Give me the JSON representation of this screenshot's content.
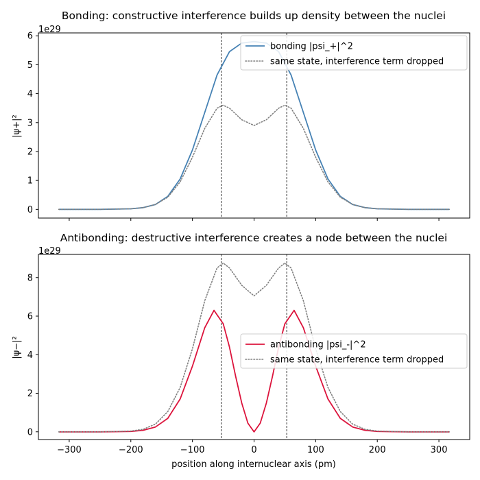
{
  "chart_data": [
    {
      "type": "line",
      "title": "Bonding: constructive interference builds up density between the nuclei",
      "xlabel": "",
      "ylabel": "|ψ+|²",
      "offset_text": "1e29",
      "xlim": [
        -350,
        350
      ],
      "ylim": [
        -0.3,
        6.1
      ],
      "yticks": [
        0,
        1,
        2,
        3,
        4,
        5,
        6
      ],
      "xticks": [
        -300,
        -200,
        -100,
        0,
        100,
        200,
        300
      ],
      "show_xticklabels": false,
      "nuclei_x": [
        -53,
        53
      ],
      "legend_position": "top-right",
      "series": [
        {
          "name": "bonding |psi_+|^2",
          "color": "#4682b4",
          "style": "solid",
          "x": [
            -317,
            -250,
            -200,
            -180,
            -160,
            -140,
            -120,
            -100,
            -80,
            -60,
            -40,
            -20,
            0,
            20,
            40,
            60,
            80,
            100,
            120,
            140,
            160,
            180,
            200,
            250,
            317
          ],
          "y": [
            0,
            0.0,
            0.02,
            0.06,
            0.17,
            0.45,
            1.05,
            2.05,
            3.35,
            4.65,
            5.45,
            5.75,
            5.8,
            5.75,
            5.45,
            4.65,
            3.35,
            2.05,
            1.05,
            0.45,
            0.17,
            0.06,
            0.02,
            0.0,
            0
          ]
        },
        {
          "name": "same state, interference term dropped",
          "color": "#808080",
          "style": "dotted",
          "x": [
            -317,
            -250,
            -200,
            -180,
            -160,
            -140,
            -120,
            -100,
            -80,
            -60,
            -50,
            -40,
            -20,
            0,
            20,
            40,
            50,
            60,
            80,
            100,
            120,
            140,
            160,
            180,
            200,
            250,
            317
          ],
          "y": [
            0,
            0.0,
            0.02,
            0.06,
            0.17,
            0.42,
            0.95,
            1.8,
            2.8,
            3.5,
            3.6,
            3.5,
            3.1,
            2.9,
            3.1,
            3.5,
            3.6,
            3.5,
            2.8,
            1.8,
            0.95,
            0.42,
            0.17,
            0.06,
            0.02,
            0.0,
            0
          ]
        }
      ]
    },
    {
      "type": "line",
      "title": "Antibonding: destructive interference creates a node between the nuclei",
      "xlabel": "position along internuclear axis (pm)",
      "ylabel": "|ψ−|²",
      "offset_text": "1e29",
      "xlim": [
        -350,
        350
      ],
      "ylim": [
        -0.4,
        9.2
      ],
      "yticks": [
        0,
        2,
        4,
        6,
        8
      ],
      "xticks": [
        -300,
        -200,
        -100,
        0,
        100,
        200,
        300
      ],
      "show_xticklabels": true,
      "nuclei_x": [
        -53,
        53
      ],
      "legend_position": "center-right",
      "series": [
        {
          "name": "antibonding |psi_-|^2",
          "color": "#dc143c",
          "style": "solid",
          "x": [
            -317,
            -250,
            -200,
            -180,
            -160,
            -140,
            -120,
            -100,
            -80,
            -65,
            -50,
            -40,
            -30,
            -20,
            -10,
            0,
            10,
            20,
            30,
            40,
            50,
            65,
            80,
            100,
            120,
            140,
            160,
            180,
            200,
            250,
            317
          ],
          "y": [
            0,
            0.0,
            0.02,
            0.08,
            0.25,
            0.7,
            1.7,
            3.4,
            5.4,
            6.3,
            5.6,
            4.4,
            2.9,
            1.5,
            0.45,
            0,
            0.45,
            1.5,
            2.9,
            4.4,
            5.6,
            6.3,
            5.4,
            3.4,
            1.7,
            0.7,
            0.25,
            0.08,
            0.02,
            0.0,
            0
          ]
        },
        {
          "name": "same state, interference term dropped",
          "color": "#808080",
          "style": "dotted",
          "x": [
            -317,
            -250,
            -200,
            -180,
            -160,
            -140,
            -120,
            -100,
            -80,
            -60,
            -50,
            -40,
            -20,
            0,
            20,
            40,
            50,
            60,
            80,
            100,
            120,
            140,
            160,
            180,
            200,
            250,
            317
          ],
          "y": [
            0,
            0.0,
            0.04,
            0.13,
            0.4,
            1.05,
            2.3,
            4.3,
            6.8,
            8.5,
            8.75,
            8.5,
            7.6,
            7.05,
            7.6,
            8.5,
            8.75,
            8.5,
            6.8,
            4.3,
            2.3,
            1.05,
            0.4,
            0.13,
            0.04,
            0.0,
            0
          ]
        }
      ]
    }
  ]
}
